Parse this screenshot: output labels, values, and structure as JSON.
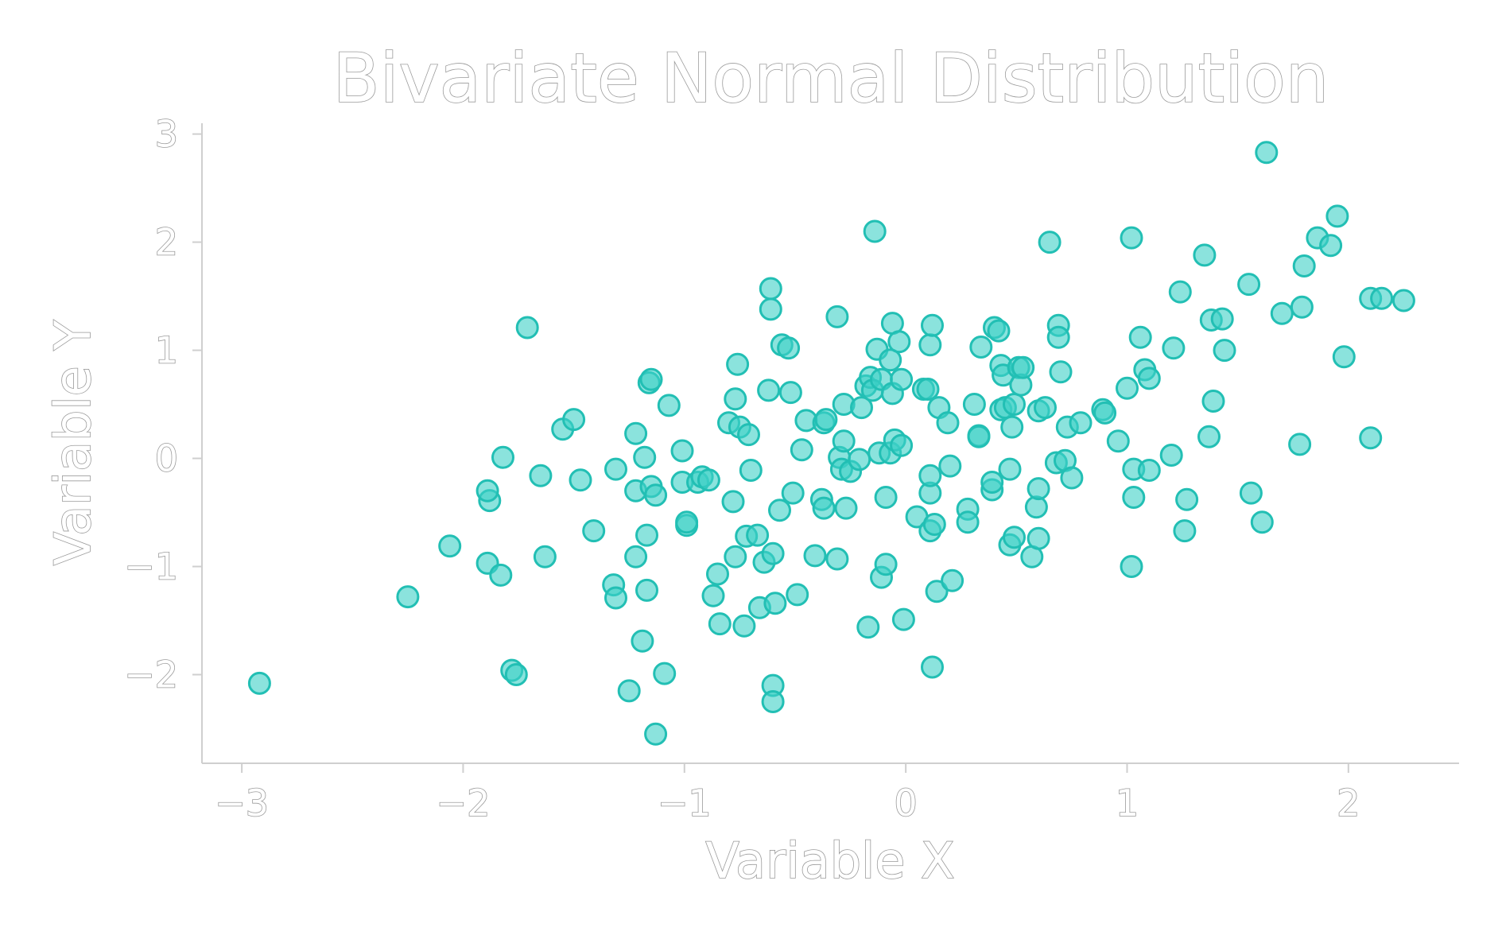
{
  "chart_data": {
    "type": "scatter",
    "title": "Bivariate Normal Distribution",
    "xlabel": "Variable X",
    "ylabel": "Variable Y",
    "xlim": [
      -3.18,
      2.5
    ],
    "ylim": [
      -2.82,
      3.1
    ],
    "xticks": [
      -3,
      -2,
      -1,
      0,
      1,
      2
    ],
    "yticks": [
      -2,
      -1,
      0,
      1,
      2,
      3
    ],
    "xtick_labels": [
      "−3",
      "−2",
      "−1",
      "0",
      "1",
      "2"
    ],
    "ytick_labels": [
      "−2",
      "−1",
      "0",
      "1",
      "2",
      "3"
    ],
    "grid": false,
    "legend": "none",
    "colors": {
      "point_fill": "#3dd1c6",
      "point_edge": "#22bfb4",
      "axis": "#cfcfcf",
      "text_outline": "#9a9a9a"
    },
    "series": [
      {
        "points": [
          [
            -2.92,
            -2.08
          ],
          [
            -2.25,
            -1.28
          ],
          [
            -2.06,
            -0.81
          ],
          [
            -1.89,
            -0.97
          ],
          [
            -1.88,
            -0.39
          ],
          [
            -1.89,
            -0.3
          ],
          [
            -1.83,
            -1.08
          ],
          [
            -1.82,
            0.01
          ],
          [
            -1.78,
            -1.96
          ],
          [
            -1.76,
            -2.0
          ],
          [
            -1.71,
            1.21
          ],
          [
            -1.65,
            -0.16
          ],
          [
            -1.63,
            -0.91
          ],
          [
            -1.55,
            0.27
          ],
          [
            -1.5,
            0.36
          ],
          [
            -1.47,
            -0.2
          ],
          [
            -1.41,
            -0.67
          ],
          [
            -1.32,
            -1.17
          ],
          [
            -1.31,
            -1.29
          ],
          [
            -1.31,
            -0.1
          ],
          [
            -1.25,
            -2.15
          ],
          [
            -1.22,
            0.23
          ],
          [
            -1.22,
            -0.91
          ],
          [
            -1.22,
            -0.3
          ],
          [
            -1.19,
            -1.69
          ],
          [
            -1.18,
            0.01
          ],
          [
            -1.17,
            -1.22
          ],
          [
            -1.17,
            -0.71
          ],
          [
            -1.16,
            0.7
          ],
          [
            -1.15,
            0.73
          ],
          [
            -1.15,
            -0.26
          ],
          [
            -1.13,
            -0.34
          ],
          [
            -1.13,
            -2.55
          ],
          [
            -1.09,
            -1.99
          ],
          [
            -1.07,
            0.49
          ],
          [
            -1.01,
            -0.22
          ],
          [
            -1.01,
            0.07
          ],
          [
            -0.99,
            -0.62
          ],
          [
            -0.99,
            -0.59
          ],
          [
            -0.94,
            -0.22
          ],
          [
            -0.92,
            -0.17
          ],
          [
            -0.89,
            -0.2
          ],
          [
            -0.87,
            -1.27
          ],
          [
            -0.85,
            -1.07
          ],
          [
            -0.84,
            -1.53
          ],
          [
            -0.8,
            0.33
          ],
          [
            -0.78,
            -0.4
          ],
          [
            -0.77,
            -0.91
          ],
          [
            -0.77,
            0.55
          ],
          [
            -0.76,
            0.87
          ],
          [
            -0.75,
            0.29
          ],
          [
            -0.73,
            -1.55
          ],
          [
            -0.72,
            -0.72
          ],
          [
            -0.71,
            0.22
          ],
          [
            -0.7,
            -0.11
          ],
          [
            -0.67,
            -0.71
          ],
          [
            -0.66,
            -1.38
          ],
          [
            -0.64,
            -0.96
          ],
          [
            -0.62,
            0.63
          ],
          [
            -0.61,
            1.57
          ],
          [
            -0.61,
            1.38
          ],
          [
            -0.6,
            -2.1
          ],
          [
            -0.6,
            -2.25
          ],
          [
            -0.6,
            -0.88
          ],
          [
            -0.59,
            -1.34
          ],
          [
            -0.57,
            -0.48
          ],
          [
            -0.56,
            1.05
          ],
          [
            -0.53,
            1.02
          ],
          [
            -0.52,
            0.61
          ],
          [
            -0.51,
            -0.32
          ],
          [
            -0.49,
            -1.26
          ],
          [
            -0.47,
            0.08
          ],
          [
            -0.45,
            0.35
          ],
          [
            -0.41,
            -0.9
          ],
          [
            -0.38,
            -0.38
          ],
          [
            -0.37,
            -0.46
          ],
          [
            -0.37,
            0.33
          ],
          [
            -0.36,
            0.36
          ],
          [
            -0.31,
            -0.93
          ],
          [
            -0.31,
            1.31
          ],
          [
            -0.3,
            0.01
          ],
          [
            -0.29,
            -0.1
          ],
          [
            -0.28,
            0.16
          ],
          [
            -0.28,
            0.5
          ],
          [
            -0.27,
            -0.46
          ],
          [
            -0.25,
            -0.12
          ],
          [
            -0.21,
            -0.01
          ],
          [
            -0.2,
            0.47
          ],
          [
            -0.18,
            0.67
          ],
          [
            -0.17,
            -1.56
          ],
          [
            -0.16,
            0.75
          ],
          [
            -0.15,
            0.63
          ],
          [
            -0.14,
            2.1
          ],
          [
            -0.13,
            1.01
          ],
          [
            -0.12,
            0.05
          ],
          [
            -0.11,
            0.73
          ],
          [
            -0.11,
            -1.1
          ],
          [
            -0.09,
            -0.36
          ],
          [
            -0.09,
            -0.98
          ],
          [
            -0.07,
            0.91
          ],
          [
            -0.07,
            0.05
          ],
          [
            -0.06,
            0.6
          ],
          [
            -0.06,
            1.25
          ],
          [
            -0.05,
            0.17
          ],
          [
            -0.03,
            1.08
          ],
          [
            -0.02,
            0.12
          ],
          [
            -0.02,
            0.73
          ],
          [
            -0.01,
            -1.49
          ],
          [
            0.05,
            -0.54
          ],
          [
            0.08,
            0.64
          ],
          [
            0.1,
            0.64
          ],
          [
            0.11,
            1.05
          ],
          [
            0.11,
            -0.67
          ],
          [
            0.11,
            -0.32
          ],
          [
            0.11,
            -0.16
          ],
          [
            0.12,
            1.23
          ],
          [
            0.12,
            -1.93
          ],
          [
            0.13,
            -0.61
          ],
          [
            0.14,
            -1.23
          ],
          [
            0.15,
            0.47
          ],
          [
            0.19,
            0.33
          ],
          [
            0.2,
            -0.07
          ],
          [
            0.21,
            -1.13
          ],
          [
            0.28,
            -0.47
          ],
          [
            0.28,
            -0.59
          ],
          [
            0.31,
            0.5
          ],
          [
            0.33,
            0.21
          ],
          [
            0.33,
            0.2
          ],
          [
            0.34,
            1.03
          ],
          [
            0.39,
            -0.29
          ],
          [
            0.39,
            -0.22
          ],
          [
            0.4,
            1.21
          ],
          [
            0.42,
            1.18
          ],
          [
            0.43,
            0.45
          ],
          [
            0.43,
            0.86
          ],
          [
            0.44,
            0.77
          ],
          [
            0.45,
            0.47
          ],
          [
            0.47,
            -0.1
          ],
          [
            0.47,
            -0.8
          ],
          [
            0.48,
            0.29
          ],
          [
            0.49,
            0.5
          ],
          [
            0.49,
            -0.73
          ],
          [
            0.51,
            0.84
          ],
          [
            0.52,
            0.68
          ],
          [
            0.53,
            0.84
          ],
          [
            0.57,
            -0.91
          ],
          [
            0.59,
            -0.45
          ],
          [
            0.6,
            -0.28
          ],
          [
            0.6,
            0.44
          ],
          [
            0.6,
            -0.74
          ],
          [
            0.63,
            0.47
          ],
          [
            0.65,
            2.0
          ],
          [
            0.68,
            -0.04
          ],
          [
            0.69,
            1.23
          ],
          [
            0.69,
            1.12
          ],
          [
            0.7,
            0.8
          ],
          [
            0.72,
            -0.02
          ],
          [
            0.73,
            0.29
          ],
          [
            0.75,
            -0.18
          ],
          [
            0.79,
            0.33
          ],
          [
            0.89,
            0.45
          ],
          [
            0.9,
            0.42
          ],
          [
            0.96,
            0.16
          ],
          [
            1.0,
            0.65
          ],
          [
            1.02,
            2.04
          ],
          [
            1.02,
            -1.0
          ],
          [
            1.03,
            -0.1
          ],
          [
            1.03,
            -0.36
          ],
          [
            1.06,
            1.12
          ],
          [
            1.08,
            0.82
          ],
          [
            1.1,
            0.74
          ],
          [
            1.1,
            -0.11
          ],
          [
            1.2,
            0.03
          ],
          [
            1.21,
            1.02
          ],
          [
            1.24,
            1.54
          ],
          [
            1.26,
            -0.67
          ],
          [
            1.27,
            -0.38
          ],
          [
            1.35,
            1.88
          ],
          [
            1.37,
            0.2
          ],
          [
            1.38,
            1.28
          ],
          [
            1.39,
            0.53
          ],
          [
            1.43,
            1.29
          ],
          [
            1.44,
            1.0
          ],
          [
            1.55,
            1.61
          ],
          [
            1.56,
            -0.32
          ],
          [
            1.61,
            -0.59
          ],
          [
            1.63,
            2.83
          ],
          [
            1.7,
            1.34
          ],
          [
            1.78,
            0.13
          ],
          [
            1.79,
            1.4
          ],
          [
            1.8,
            1.78
          ],
          [
            1.86,
            2.04
          ],
          [
            1.92,
            1.97
          ],
          [
            1.95,
            2.24
          ],
          [
            1.98,
            0.94
          ],
          [
            2.1,
            1.48
          ],
          [
            2.1,
            0.19
          ],
          [
            2.15,
            1.48
          ],
          [
            2.25,
            1.46
          ]
        ]
      }
    ]
  }
}
